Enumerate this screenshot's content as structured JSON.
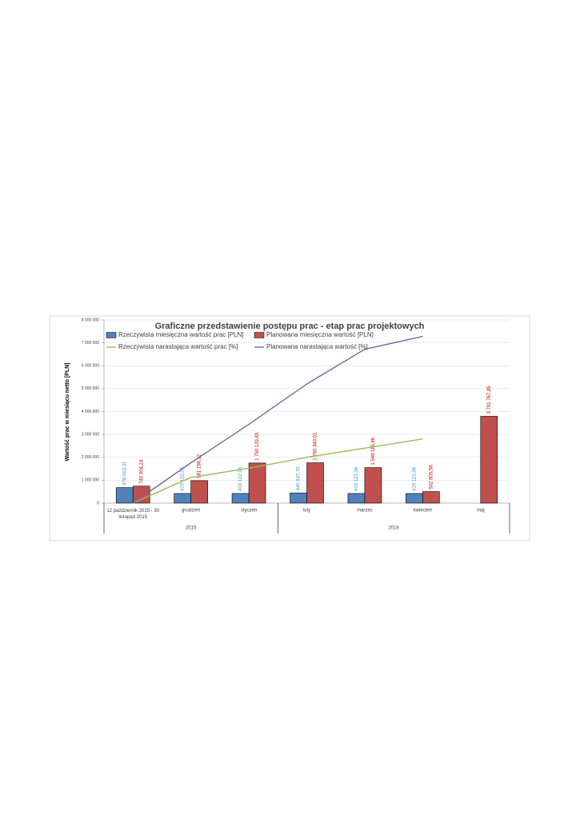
{
  "chart_data": {
    "type": "bar-line",
    "title": "Graficzne przedstawienie postępu prac - etap prac projektowych",
    "y_label": "Wartość prac w miesiącu netto [PLN]",
    "categories": [
      "12 październik 2015 - 30 listopad 2015",
      "grudzień",
      "styczeń",
      "luty",
      "marzec",
      "kwiecień",
      "maj"
    ],
    "x_groups": [
      {
        "label": "2015",
        "count": 3
      },
      {
        "label": "2016",
        "count": 4
      }
    ],
    "ylim": [
      0,
      8000000
    ],
    "yticks": [
      0,
      {
        "value": 1000000,
        "label": "1 000 000"
      },
      {
        "value": 2000000,
        "label": "2 000 000"
      },
      {
        "value": 3000000,
        "label": "3 000 000"
      },
      {
        "value": 4000000,
        "label": "4 000 000"
      },
      {
        "value": 5000000,
        "label": "5 000 000"
      },
      {
        "value": 6000000,
        "label": "6 000 000"
      },
      {
        "value": 7000000,
        "label": "7 000 000"
      },
      {
        "value": 8000000,
        "label": "8 000 000"
      }
    ],
    "y2lim": [
      0,
      100
    ],
    "grid": true,
    "legend": "top-left",
    "series": [
      {
        "name": "Rzeczywista miesięczna wartość prac [PLN]",
        "kind": "bar",
        "color": "#4f81bd",
        "label_color": "#4a90c0",
        "values": [
          676003.31,
          419122.06,
          419122.06,
          440047.7,
          419122.06,
          419122.06,
          null
        ],
        "value_labels": [
          "676 003,31",
          "419 122,06",
          "419 122,06",
          "440 047,70",
          "419 122,06",
          "419 122,06",
          null
        ]
      },
      {
        "name": "Planowana miesięczna wartość [PLN]",
        "kind": "bar",
        "color": "#c0504d",
        "label_color": "#c00000",
        "values": [
          740904.24,
          981156.12,
          1750129.83,
          1760340.01,
          1549115.46,
          502805.58,
          3791767.85
        ],
        "value_labels": [
          "740 904,24",
          "981 156,12",
          "1 750 129,83",
          "1 760 340,01",
          "1 549 115,46",
          "502 805,58",
          "3 791 767,85"
        ]
      },
      {
        "name": "Rzeczywista narastająca wartość prac [%]",
        "kind": "line",
        "axis": "y2",
        "color": "#9bbb59",
        "values": [
          0,
          14,
          19,
          25,
          30,
          35,
          null
        ]
      },
      {
        "name": "Planowana narastająca wartość [%]",
        "kind": "line",
        "axis": "y2",
        "color": "#8064a2",
        "values": [
          0,
          22,
          43,
          65,
          84,
          91,
          null
        ]
      }
    ]
  }
}
